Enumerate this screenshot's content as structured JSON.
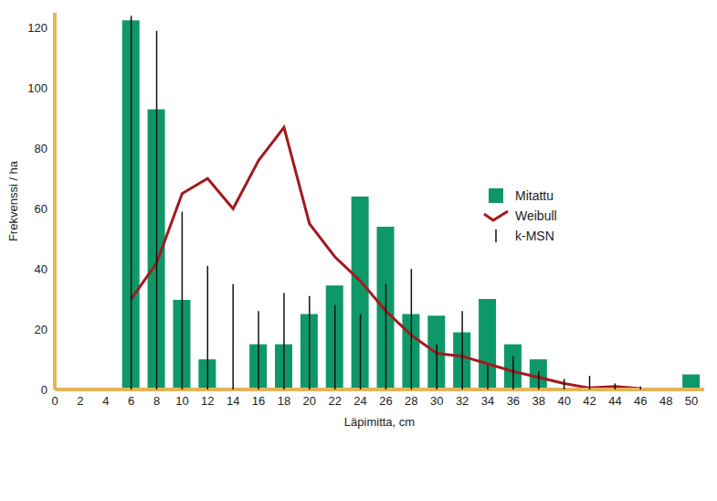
{
  "chart_data": {
    "type": "bar",
    "x_label": "Läpimitta, cm",
    "y_label": "Frekvenssi / ha",
    "x": [
      6,
      8,
      10,
      12,
      14,
      16,
      18,
      20,
      22,
      24,
      26,
      28,
      30,
      32,
      34,
      36,
      38,
      40,
      42,
      44,
      46,
      48,
      50
    ],
    "series": [
      {
        "name": "Mitattu",
        "type": "bar",
        "color": "#0e9868",
        "values": [
          122.5,
          93,
          29.7,
          10,
          0,
          15,
          15,
          25,
          34.5,
          64,
          54,
          25,
          24.5,
          19,
          30,
          15,
          10,
          0,
          0,
          0,
          0,
          0,
          5
        ]
      },
      {
        "name": "Weibull",
        "type": "line",
        "color": "#a3191e",
        "values": [
          30,
          42,
          65,
          70,
          60,
          76,
          87,
          55,
          44,
          36,
          26,
          18,
          12,
          11,
          8.5,
          6,
          4,
          2,
          0.5,
          1,
          0.3,
          null,
          null
        ]
      },
      {
        "name": "k-MSN",
        "type": "stem",
        "color": "#111111",
        "values": [
          124,
          119,
          59,
          41,
          35,
          26,
          32,
          31,
          28,
          25,
          35,
          40,
          15,
          26,
          8,
          11,
          6,
          3.5,
          4.5,
          2,
          1,
          0,
          0
        ]
      }
    ],
    "xlim": [
      0,
      51
    ],
    "xticks": [
      0,
      2,
      4,
      6,
      8,
      10,
      12,
      14,
      16,
      18,
      20,
      22,
      24,
      26,
      28,
      30,
      32,
      34,
      36,
      38,
      40,
      42,
      44,
      46,
      48,
      50
    ],
    "ylim": [
      0,
      125
    ],
    "yticks": [
      0,
      20,
      40,
      60,
      80,
      100,
      120
    ],
    "grid": false,
    "legend": "right"
  }
}
